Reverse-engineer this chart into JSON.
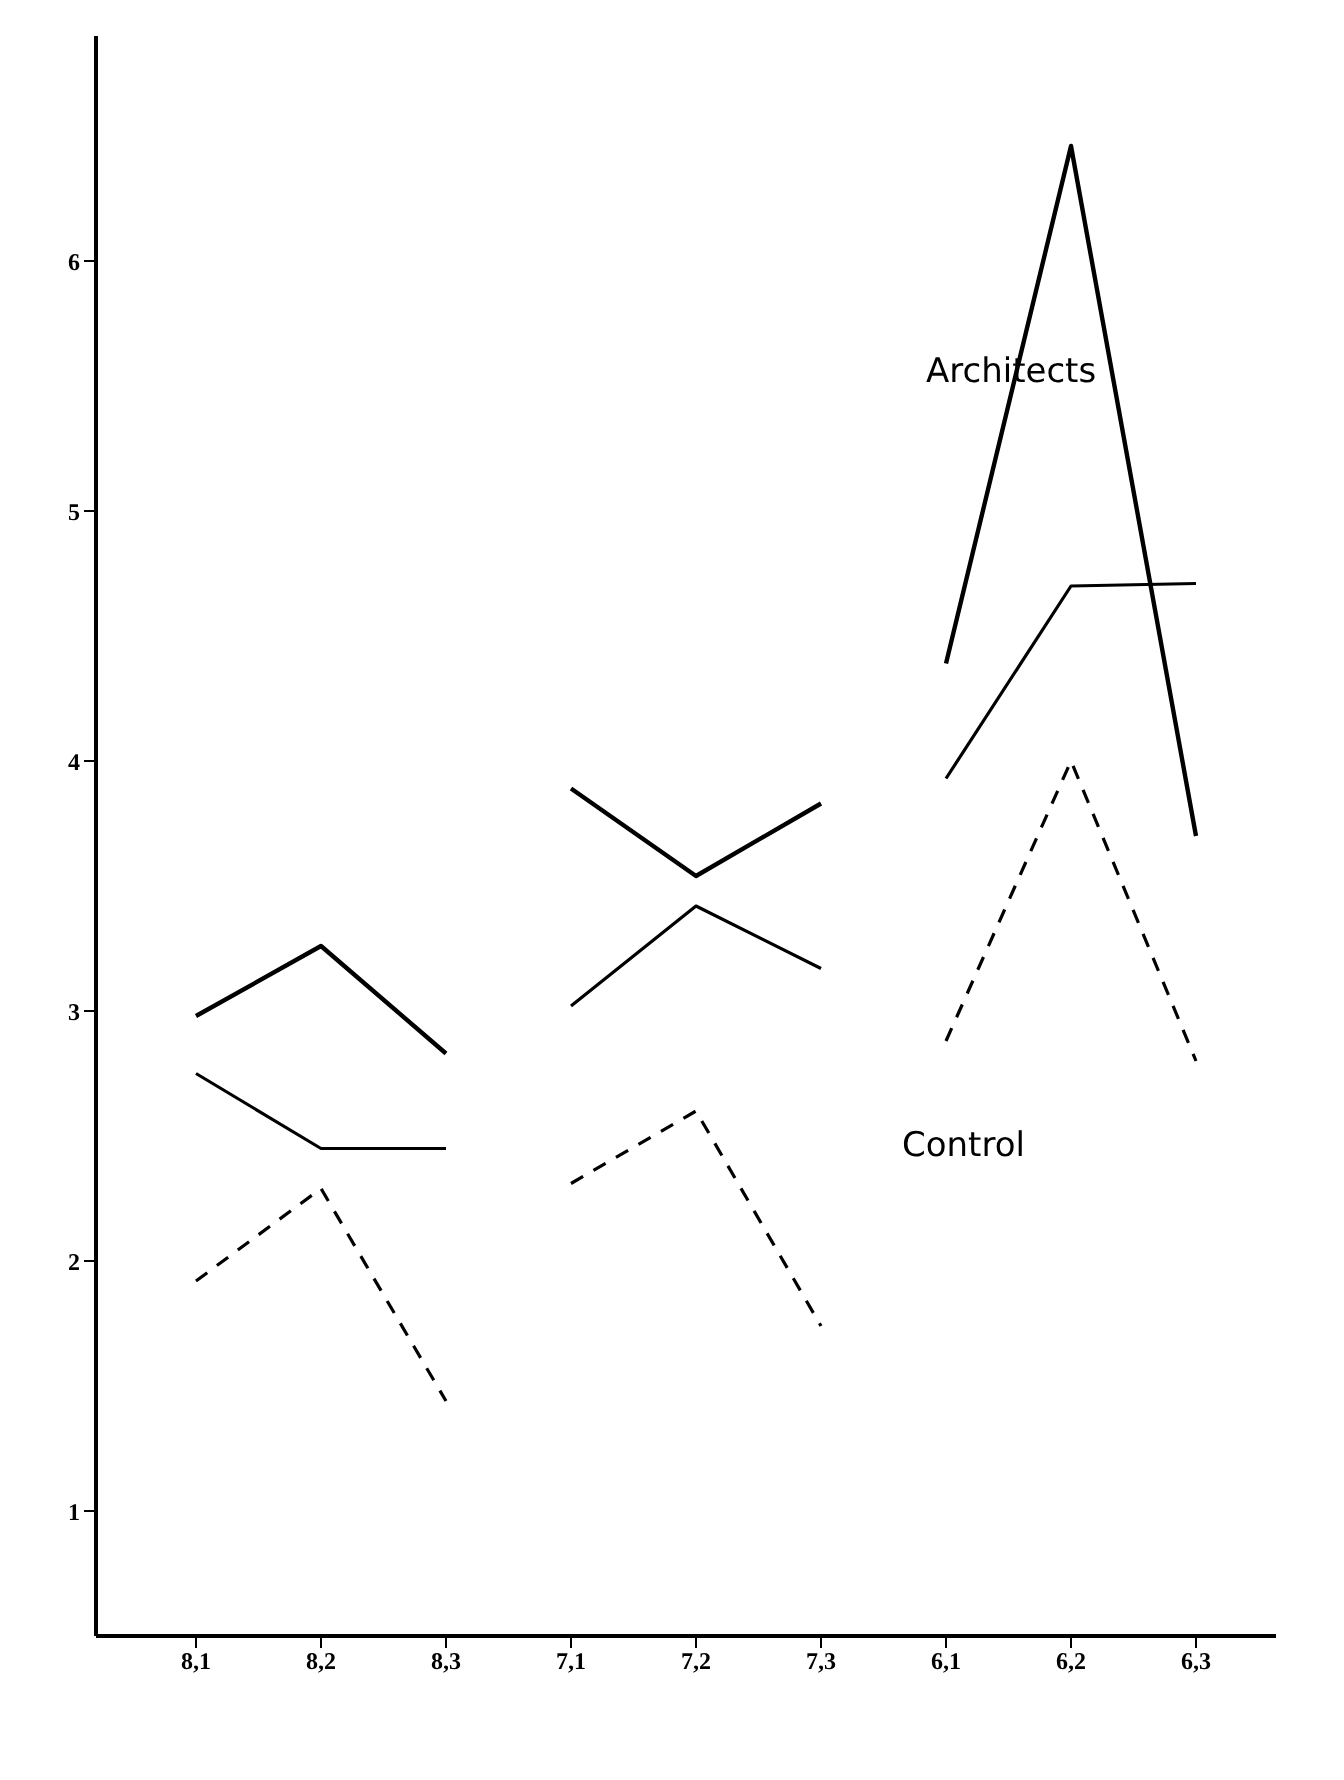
{
  "chart_data": {
    "type": "line",
    "categories": [
      "8,1",
      "8,2",
      "8,3",
      "7,1",
      "7,2",
      "7,3",
      "6,1",
      "6,2",
      "6,3"
    ],
    "series": [
      {
        "color": "#000000",
        "line_style": "solid",
        "values": [
          2.98,
          3.26,
          2.83,
          null,
          null,
          null,
          null,
          null,
          null
        ]
      },
      {
        "color": "#000000",
        "line_style": "solid",
        "values": [
          null,
          null,
          null,
          3.89,
          3.54,
          3.83,
          null,
          null,
          null
        ]
      },
      {
        "color": "#000000",
        "line_style": "solid",
        "values": [
          null,
          null,
          null,
          null,
          null,
          null,
          4.39,
          6.46,
          3.7
        ]
      },
      {
        "color": "#000000",
        "line_style": "solid",
        "values": [
          2.75,
          2.45,
          2.45,
          null,
          null,
          null,
          null,
          null,
          null
        ]
      },
      {
        "color": "#000000",
        "line_style": "solid",
        "values": [
          null,
          null,
          null,
          3.02,
          3.42,
          3.17,
          null,
          null,
          null
        ]
      },
      {
        "color": "#000000",
        "line_style": "solid",
        "values": [
          null,
          null,
          null,
          null,
          null,
          null,
          3.93,
          4.7,
          4.71
        ]
      },
      {
        "color": "#000000",
        "line_style": "dashed",
        "values": [
          1.92,
          2.29,
          1.44,
          null,
          null,
          null,
          null,
          null,
          null
        ]
      },
      {
        "color": "#000000",
        "line_style": "dashed",
        "values": [
          null,
          null,
          null,
          2.31,
          2.6,
          1.74,
          null,
          null,
          null
        ]
      },
      {
        "color": "#000000",
        "line_style": "dashed",
        "values": [
          null,
          null,
          null,
          null,
          null,
          null,
          2.88,
          4.0,
          2.8
        ]
      }
    ],
    "annotations": [
      "Architects",
      "Control"
    ],
    "ylim": [
      0.5,
      6.9
    ],
    "yticks": [
      1,
      2,
      3,
      4,
      5,
      6
    ],
    "marker": "none"
  }
}
